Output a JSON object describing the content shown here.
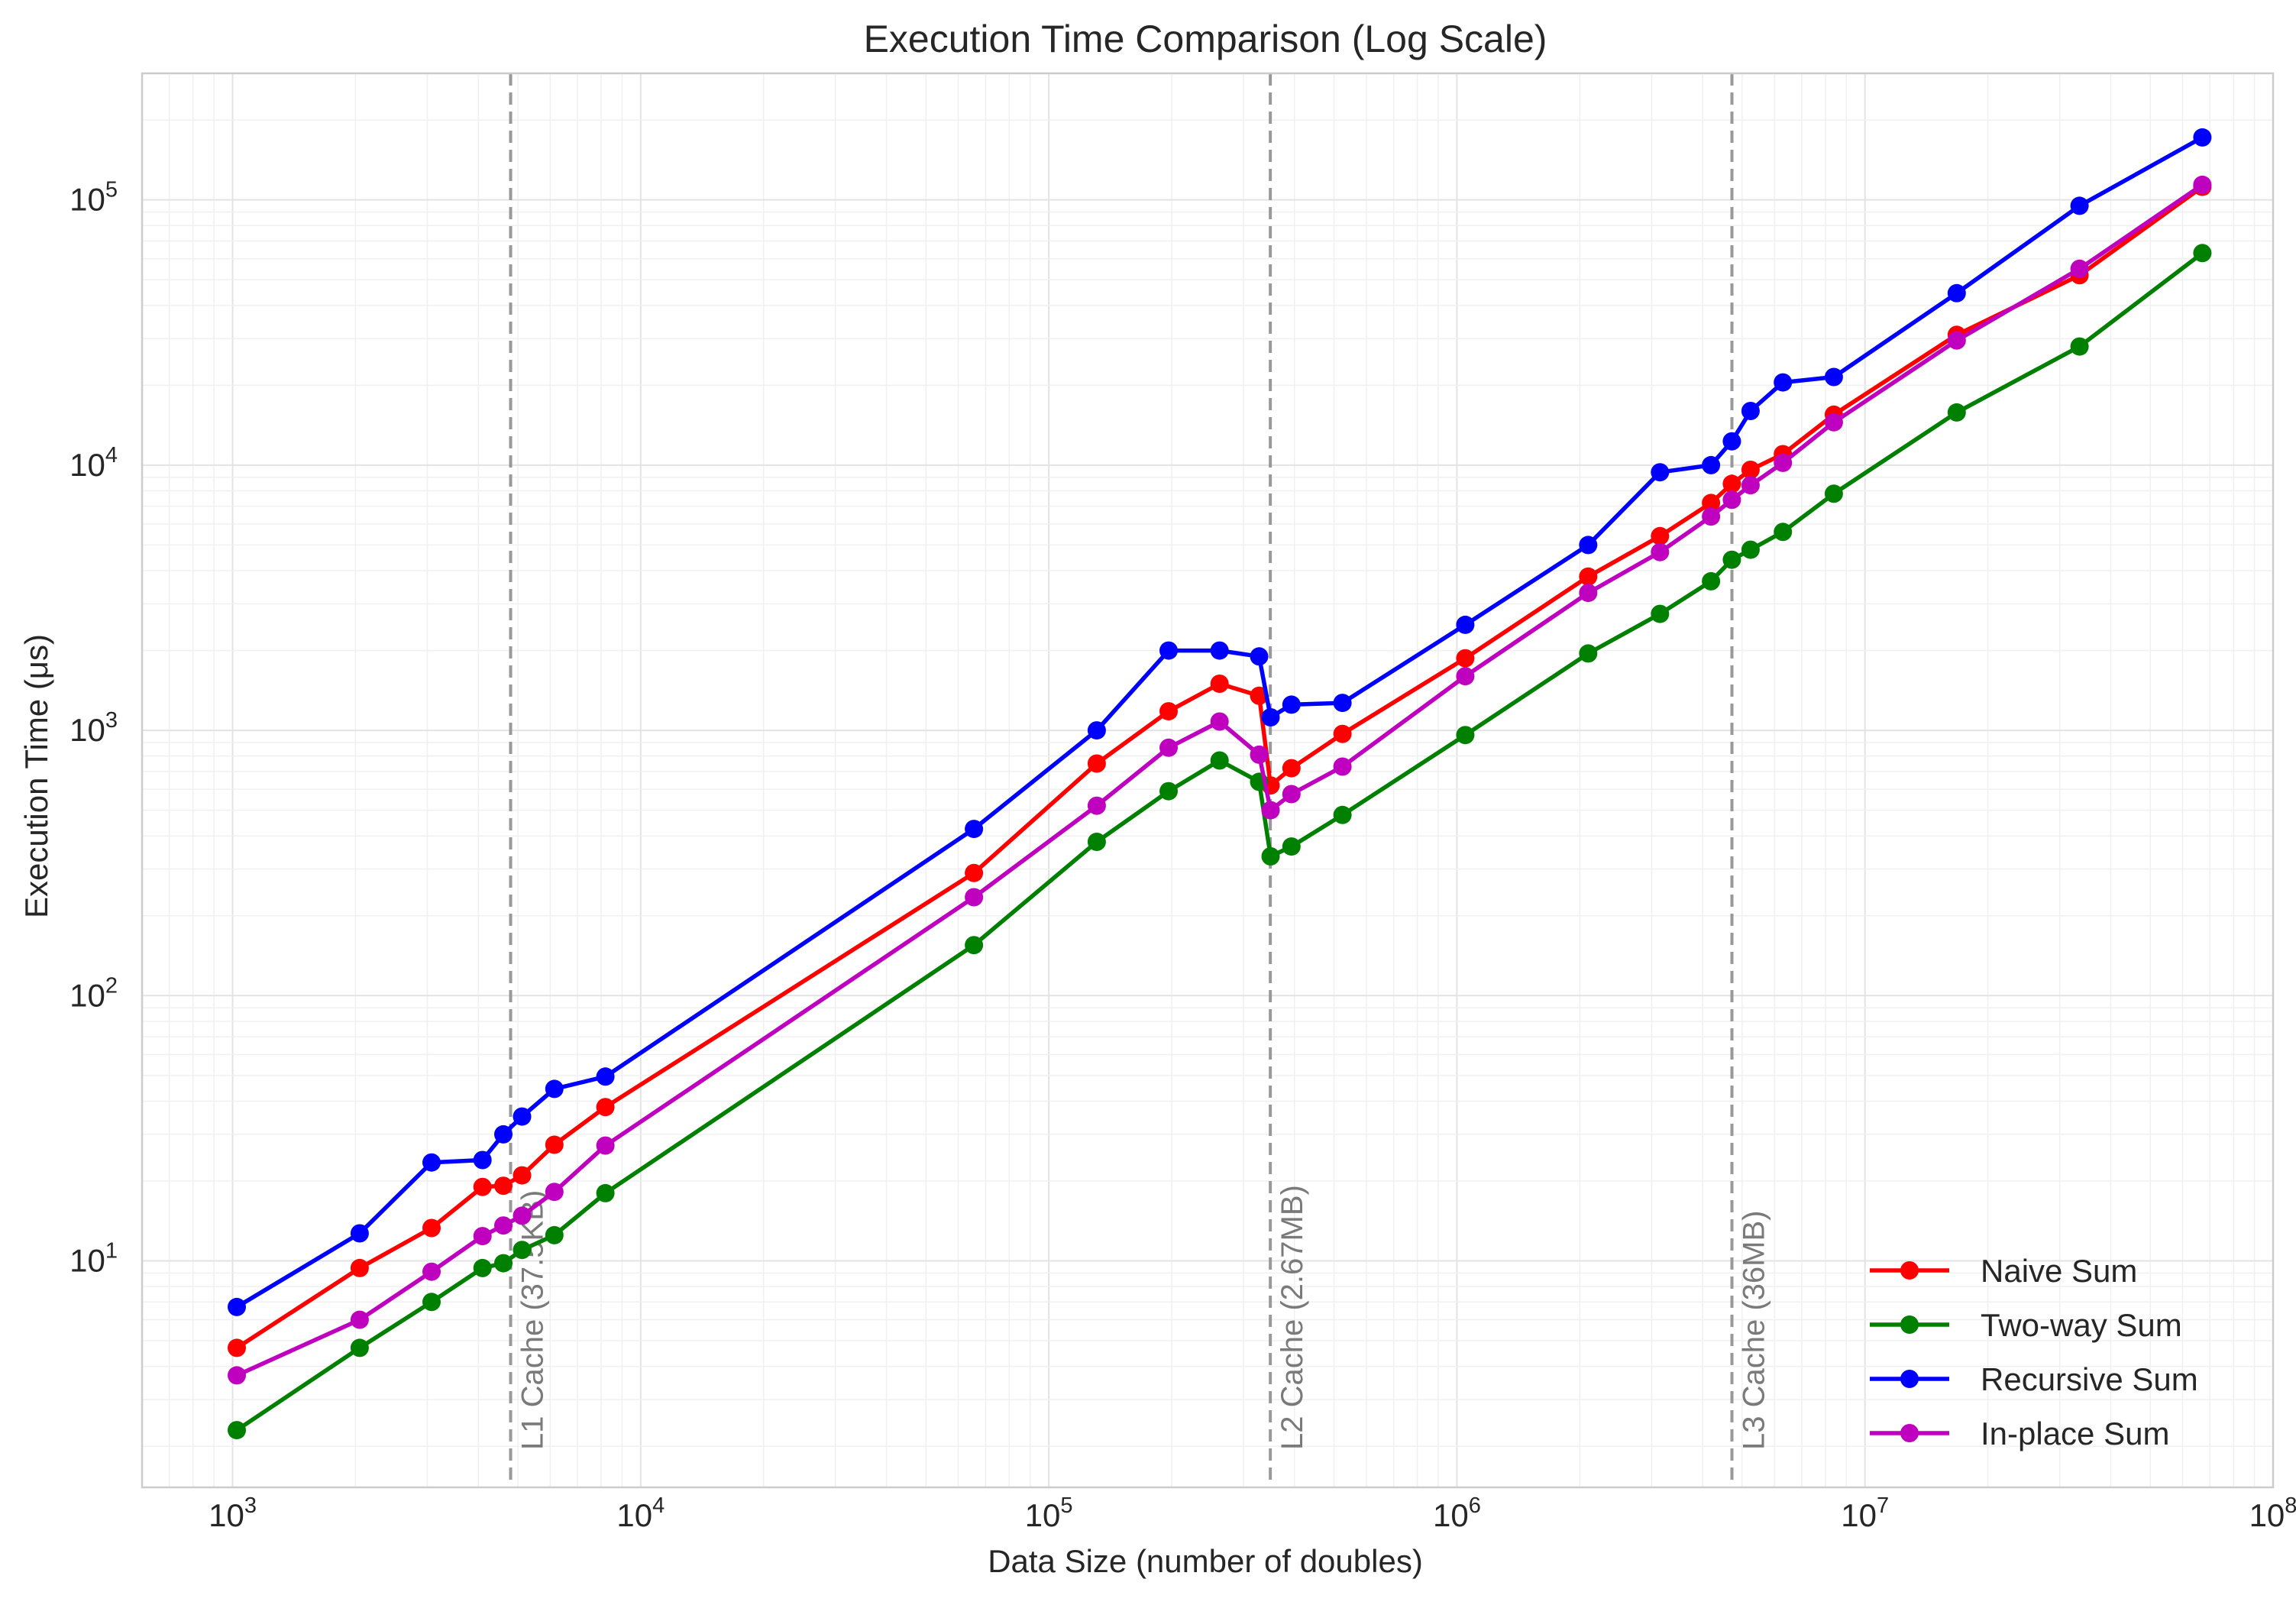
{
  "chart_data": {
    "type": "line",
    "title": "Execution Time Comparison (Log Scale)",
    "xlabel": "Data Size (number of doubles)",
    "ylabel": "Execution Time (μs)",
    "x_scale": "log",
    "y_scale": "log",
    "xlim": [
      600,
      100000000
    ],
    "ylim": [
      1.4,
      300000
    ],
    "grid": true,
    "legend_position": "lower-right",
    "x_ticks": [
      {
        "value": 1000,
        "base": "10",
        "exp": "3"
      },
      {
        "value": 10000,
        "base": "10",
        "exp": "4"
      },
      {
        "value": 100000,
        "base": "10",
        "exp": "5"
      },
      {
        "value": 1000000,
        "base": "10",
        "exp": "6"
      },
      {
        "value": 10000000,
        "base": "10",
        "exp": "7"
      },
      {
        "value": 100000000,
        "base": "10",
        "exp": "8"
      }
    ],
    "y_ticks": [
      {
        "value": 10,
        "base": "10",
        "exp": "1"
      },
      {
        "value": 100,
        "base": "10",
        "exp": "2"
      },
      {
        "value": 1000,
        "base": "10",
        "exp": "3"
      },
      {
        "value": 10000,
        "base": "10",
        "exp": "4"
      },
      {
        "value": 100000,
        "base": "10",
        "exp": "5"
      }
    ],
    "reference_lines": [
      {
        "x": 4800,
        "label": "L1 Cache (37.5KB)",
        "color": "#999999"
      },
      {
        "x": 349000,
        "label": "L2 Cache (2.67MB)",
        "color": "#999999"
      },
      {
        "x": 4720000,
        "label": "L3 Cache (36MB)",
        "color": "#999999"
      }
    ],
    "series": [
      {
        "name": "Naive Sum",
        "color": "#ff0000",
        "points": [
          [
            1024,
            4.7
          ],
          [
            2048,
            9.4
          ],
          [
            3072,
            13.3
          ],
          [
            4096,
            19
          ],
          [
            4608,
            19.2
          ],
          [
            5120,
            21
          ],
          [
            6144,
            27.4
          ],
          [
            8192,
            38
          ],
          [
            65536,
            290
          ],
          [
            131072,
            750
          ],
          [
            196608,
            1180
          ],
          [
            262144,
            1500
          ],
          [
            327680,
            1350
          ],
          [
            349525,
            620
          ],
          [
            393216,
            720
          ],
          [
            524288,
            970
          ],
          [
            1048576,
            1870
          ],
          [
            2097152,
            3800
          ],
          [
            3145728,
            5400
          ],
          [
            4194304,
            7200
          ],
          [
            4718592,
            8500
          ],
          [
            5242880,
            9600
          ],
          [
            6291456,
            11000
          ],
          [
            8388608,
            15500
          ],
          [
            16777216,
            31000
          ],
          [
            33554432,
            52000
          ],
          [
            67108864,
            112000
          ]
        ]
      },
      {
        "name": "Two-way Sum",
        "color": "#008000",
        "points": [
          [
            1024,
            2.3
          ],
          [
            2048,
            4.7
          ],
          [
            3072,
            7
          ],
          [
            4096,
            9.4
          ],
          [
            4608,
            9.8
          ],
          [
            5120,
            11
          ],
          [
            6144,
            12.5
          ],
          [
            8192,
            18
          ],
          [
            65536,
            155
          ],
          [
            131072,
            380
          ],
          [
            196608,
            590
          ],
          [
            262144,
            770
          ],
          [
            327680,
            640
          ],
          [
            349525,
            335
          ],
          [
            393216,
            365
          ],
          [
            524288,
            480
          ],
          [
            1048576,
            960
          ],
          [
            2097152,
            1950
          ],
          [
            3145728,
            2750
          ],
          [
            4194304,
            3650
          ],
          [
            4718592,
            4400
          ],
          [
            5242880,
            4800
          ],
          [
            6291456,
            5600
          ],
          [
            8388608,
            7800
          ],
          [
            16777216,
            15800
          ],
          [
            33554432,
            28000
          ],
          [
            67108864,
            63000
          ]
        ]
      },
      {
        "name": "Recursive Sum",
        "color": "#0000ff",
        "points": [
          [
            1024,
            6.7
          ],
          [
            2048,
            12.7
          ],
          [
            3072,
            23.5
          ],
          [
            4096,
            24
          ],
          [
            4608,
            30
          ],
          [
            5120,
            35
          ],
          [
            6144,
            44.5
          ],
          [
            8192,
            49.5
          ],
          [
            65536,
            425
          ],
          [
            131072,
            1000
          ],
          [
            196608,
            2000
          ],
          [
            262144,
            2000
          ],
          [
            327680,
            1900
          ],
          [
            349525,
            1120
          ],
          [
            393216,
            1250
          ],
          [
            524288,
            1270
          ],
          [
            1048576,
            2500
          ],
          [
            2097152,
            5000
          ],
          [
            3145728,
            9400
          ],
          [
            4194304,
            10000
          ],
          [
            4718592,
            12300
          ],
          [
            5242880,
            16000
          ],
          [
            6291456,
            20500
          ],
          [
            8388608,
            21500
          ],
          [
            16777216,
            44500
          ],
          [
            33554432,
            95000
          ],
          [
            67108864,
            172000
          ]
        ]
      },
      {
        "name": "In-place Sum",
        "color": "#bf00bf",
        "points": [
          [
            1024,
            3.7
          ],
          [
            2048,
            6
          ],
          [
            3072,
            9.1
          ],
          [
            4096,
            12.4
          ],
          [
            4608,
            13.6
          ],
          [
            5120,
            14.8
          ],
          [
            6144,
            18.2
          ],
          [
            8192,
            27.2
          ],
          [
            65536,
            235
          ],
          [
            131072,
            520
          ],
          [
            196608,
            860
          ],
          [
            262144,
            1080
          ],
          [
            327680,
            810
          ],
          [
            349525,
            500
          ],
          [
            393216,
            575
          ],
          [
            524288,
            730
          ],
          [
            1048576,
            1600
          ],
          [
            2097152,
            3300
          ],
          [
            3145728,
            4700
          ],
          [
            4194304,
            6400
          ],
          [
            4718592,
            7400
          ],
          [
            5242880,
            8400
          ],
          [
            6291456,
            10200
          ],
          [
            8388608,
            14500
          ],
          [
            16777216,
            29500
          ],
          [
            33554432,
            55000
          ],
          [
            67108864,
            114000
          ]
        ]
      }
    ]
  }
}
